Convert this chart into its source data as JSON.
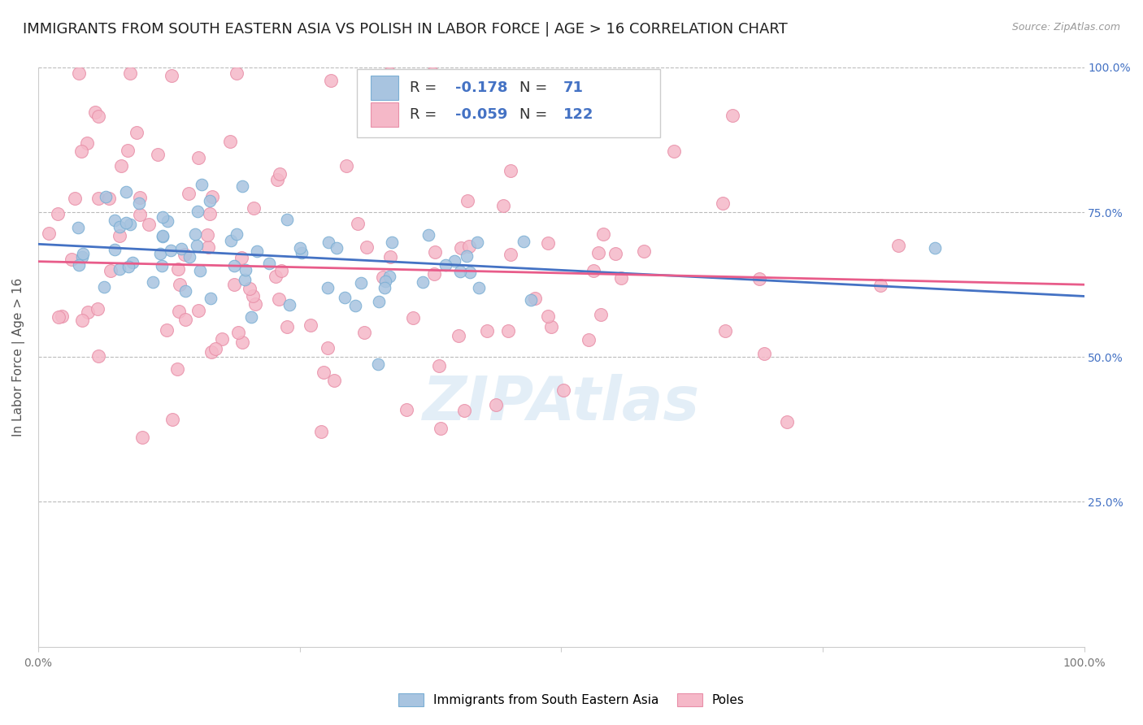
{
  "title": "IMMIGRANTS FROM SOUTH EASTERN ASIA VS POLISH IN LABOR FORCE | AGE > 16 CORRELATION CHART",
  "source": "Source: ZipAtlas.com",
  "ylabel": "In Labor Force | Age > 16",
  "xlim": [
    0.0,
    1.0
  ],
  "ylim": [
    0.0,
    1.0
  ],
  "blue_color": "#a8c4e0",
  "blue_edge": "#7bafd4",
  "pink_color": "#f5b8c8",
  "pink_edge": "#e88fa8",
  "trend_blue": "#4472c4",
  "trend_pink": "#e85c8a",
  "R_blue": -0.178,
  "N_blue": 71,
  "R_pink": -0.059,
  "N_pink": 122,
  "blue_intercept": 0.695,
  "blue_slope": -0.09,
  "pink_intercept": 0.665,
  "pink_slope": -0.04,
  "legend_label_blue": "Immigrants from South Eastern Asia",
  "legend_label_pink": "Poles",
  "watermark": "ZIPAtlas",
  "background_color": "#ffffff",
  "dashed_line_color": "#bbbbbb",
  "title_fontsize": 13,
  "axis_label_fontsize": 11,
  "tick_fontsize": 10
}
